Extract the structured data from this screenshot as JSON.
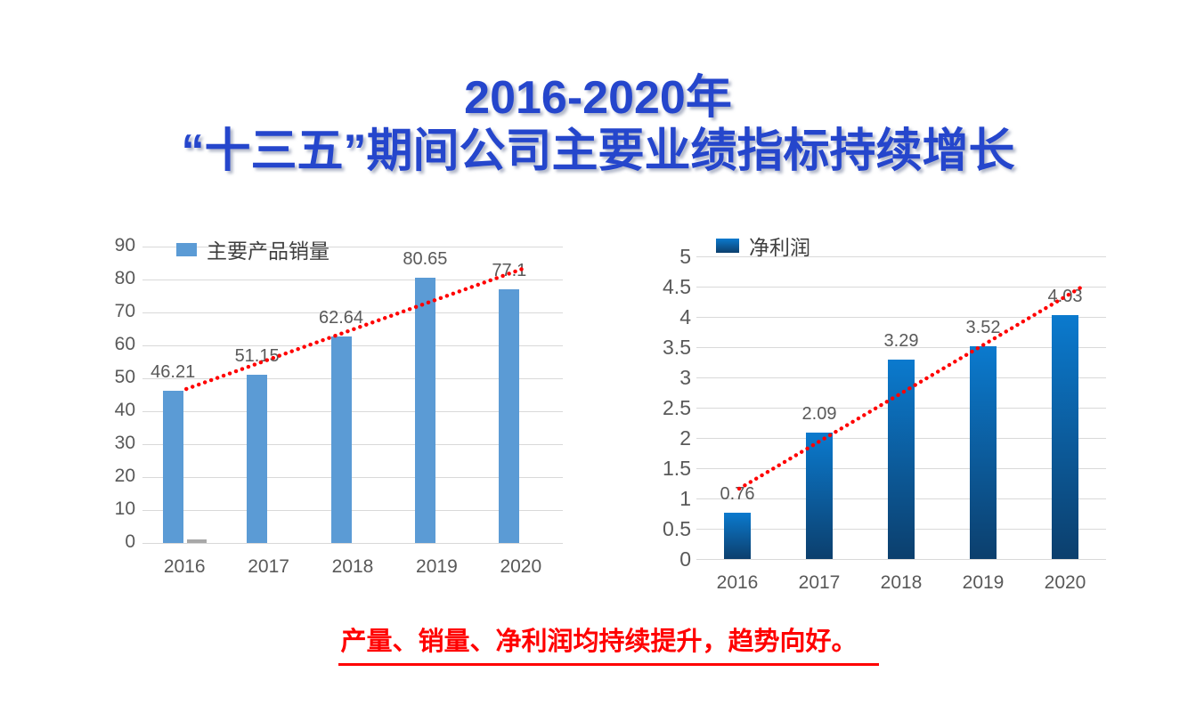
{
  "page": {
    "background": "#ffffff",
    "title": {
      "line1": "2016-2020年",
      "line2": "“十三五”期间公司主要业绩指标持续增长",
      "color": "#2546cc"
    },
    "footer": {
      "text": "产量、销量、净利润均持续提升，趋势向好。",
      "color": "#ff0000"
    }
  },
  "chart_data": [
    {
      "id": "sales",
      "type": "bar",
      "title": "",
      "legend": {
        "label": "主要产品销量",
        "swatch_color": "#5b9bd5",
        "text_color": "#3f3f3f",
        "position": "top-left"
      },
      "categories": [
        "2016",
        "2017",
        "2018",
        "2019",
        "2020"
      ],
      "series": [
        {
          "name": "主要产品销量",
          "values": [
            46.21,
            51.15,
            62.64,
            80.65,
            77.1
          ],
          "data_labels": [
            "46.21",
            "51.15",
            "62.64",
            "80.65",
            "77.1"
          ],
          "color": "#5b9bd5"
        },
        {
          "name": "unlabeled-gray-mini-series",
          "values": [
            1,
            0,
            0,
            0,
            0
          ],
          "data_labels": null,
          "color": "#a8a8a8"
        }
      ],
      "xlabel": "",
      "ylabel": "",
      "ylim": [
        0,
        90
      ],
      "ytick_step": 10,
      "grid": true,
      "grid_color": "#d9d9d9",
      "axis_text_color": "#595959",
      "legend_position": "top-left",
      "trendline": {
        "type": "linear",
        "color": "#ff0000",
        "style": "dotted"
      }
    },
    {
      "id": "profit",
      "type": "bar",
      "title": "",
      "legend": {
        "label": "净利润",
        "swatch_color": "#0b7ace",
        "text_color": "#3f3f3f",
        "position": "top-left"
      },
      "categories": [
        "2016",
        "2017",
        "2018",
        "2019",
        "2020"
      ],
      "series": [
        {
          "name": "净利润",
          "values": [
            0.76,
            2.09,
            3.29,
            3.52,
            4.03
          ],
          "data_labels": [
            "0.76",
            "2.09",
            "3.29",
            "3.52",
            "4.03"
          ],
          "color": "#0b7ace",
          "gradient": [
            "#0b7ace",
            "#0c3f6d"
          ]
        }
      ],
      "xlabel": "",
      "ylabel": "",
      "ylim": [
        0,
        5
      ],
      "ytick_step": 0.5,
      "grid": true,
      "grid_color": "#d9d9d9",
      "axis_text_color": "#595959",
      "legend_position": "top-left",
      "trendline": {
        "type": "linear",
        "color": "#ff0000",
        "style": "dotted"
      }
    }
  ]
}
